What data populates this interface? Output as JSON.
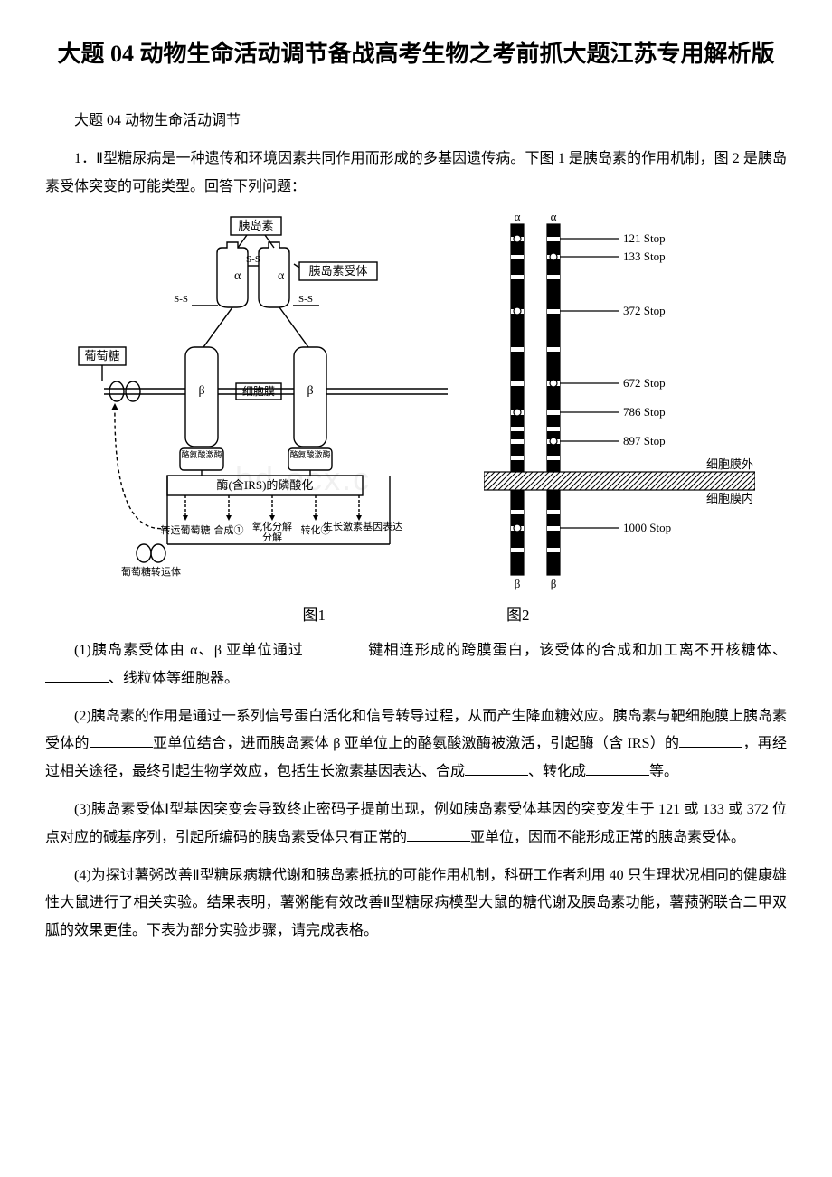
{
  "title": "大题 04 动物生命活动调节备战高考生物之考前抓大题江苏专用解析版",
  "section_header": "大题 04 动物生命活动调节",
  "q1_intro": "1．Ⅱ型糖尿病是一种遗传和环境因素共同作用而形成的多基因遗传病。下图 1 是胰岛素的作用机制，图 2 是胰岛素受体突变的可能类型。回答下列问题：",
  "fig1_label": "图1",
  "fig2_label": "图2",
  "q1_1a": "(1)胰岛素受体由 α、β 亚单位通过",
  "q1_1b": "键相连形成的跨膜蛋白，该受体的合成和加工离不开核糖体、",
  "q1_1c": "、线粒体等细胞器。",
  "q1_2a": "(2)胰岛素的作用是通过一系列信号蛋白活化和信号转导过程，从而产生降血糖效应。胰岛素与靶细胞膜上胰岛素受体的",
  "q1_2b": "亚单位结合，进而胰岛素体 β 亚单位上的酪氨酸激酶被激活，引起酶（含 IRS）的",
  "q1_2c": "，再经过相关途径，最终引起生物学效应，包括生长激素基因表达、合成",
  "q1_2d": "、转化成",
  "q1_2e": "等。",
  "q1_3a": "(3)胰岛素受体Ⅰ型基因突变会导致终止密码子提前出现，例如胰岛素受体基因的突变发生于 121 或 133 或 372 位点对应的碱基序列，引起所编码的胰岛素受体只有正常的",
  "q1_3b": "亚单位，因而不能形成正常的胰岛素受体。",
  "q1_4": "(4)为探讨薯粥改善Ⅱ型糖尿病糖代谢和胰岛素抵抗的可能作用机制，科研工作者利用 40 只生理状况相同的健康雄性大鼠进行了相关实验。结果表明，薯粥能有效改善Ⅱ型糖尿病模型大鼠的糖代谢及胰岛素功能，薯蓣粥联合二甲双胍的效果更佳。下表为部分实验步骤，请完成表格。",
  "fig1": {
    "insulin_label": "胰岛素",
    "receptor_label": "胰岛素受体",
    "glucose_label": "葡萄糖",
    "membrane_label": "细胞膜",
    "kinase_label": "酪氨酸激酶",
    "phospho_label": "酶(含IRS)的磷酸化",
    "path1": "转运葡萄糖",
    "path2": "合成①",
    "path3": "氧化分解",
    "path4": "转化②",
    "path5": "生长激素基因表达",
    "transporter_label": "葡萄糖转运体",
    "ss": "S-S",
    "alpha": "α",
    "beta": "β"
  },
  "fig2": {
    "alpha": "α",
    "beta": "β",
    "stops": [
      "121 Stop",
      "133 Stop",
      "372 Stop",
      "672 Stop",
      "786 Stop",
      "897 Stop",
      "1000 Stop"
    ],
    "stop_y": [
      28,
      48,
      108,
      188,
      220,
      252,
      348
    ],
    "mem_out": "细胞膜外",
    "mem_in": "细胞膜内",
    "colors": {
      "bar_fill": "#000000",
      "band_fill": "#ffffff",
      "membrane_hatch": "#000000",
      "line": "#000000"
    }
  },
  "watermark": "bd ocx.c"
}
